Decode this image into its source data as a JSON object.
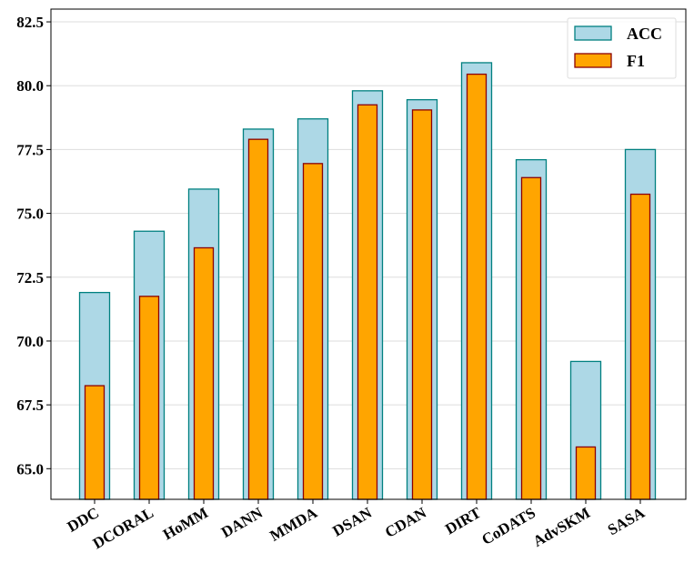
{
  "chart_data": {
    "type": "bar",
    "categories": [
      "DDC",
      "DCORAL",
      "HoMM",
      "DANN",
      "MMDA",
      "DSAN",
      "CDAN",
      "DIRT",
      "CoDATS",
      "AdvSKM",
      "SASA"
    ],
    "series": [
      {
        "name": "ACC",
        "values": [
          71.9,
          74.3,
          75.95,
          78.3,
          78.7,
          79.8,
          79.45,
          80.9,
          77.1,
          69.2,
          77.5
        ],
        "fill": "#add8e6",
        "stroke": "#008080"
      },
      {
        "name": "F1",
        "values": [
          68.25,
          71.75,
          73.65,
          77.9,
          76.95,
          79.25,
          79.05,
          80.45,
          76.4,
          65.85,
          75.75
        ],
        "fill": "#ffa500",
        "stroke": "#8b0000"
      }
    ],
    "ylim": [
      63.8,
      83.0
    ],
    "yticks": [
      65.0,
      67.5,
      70.0,
      72.5,
      75.0,
      77.5,
      80.0,
      82.5
    ],
    "ytick_labels": [
      "65.0",
      "67.5",
      "70.0",
      "72.5",
      "75.0",
      "77.5",
      "80.0",
      "82.5"
    ],
    "grid": true,
    "grid_axis": "y",
    "grid_color": "#dddddd",
    "legend_position": "top-right",
    "title": "",
    "xlabel": "",
    "ylabel": ""
  }
}
